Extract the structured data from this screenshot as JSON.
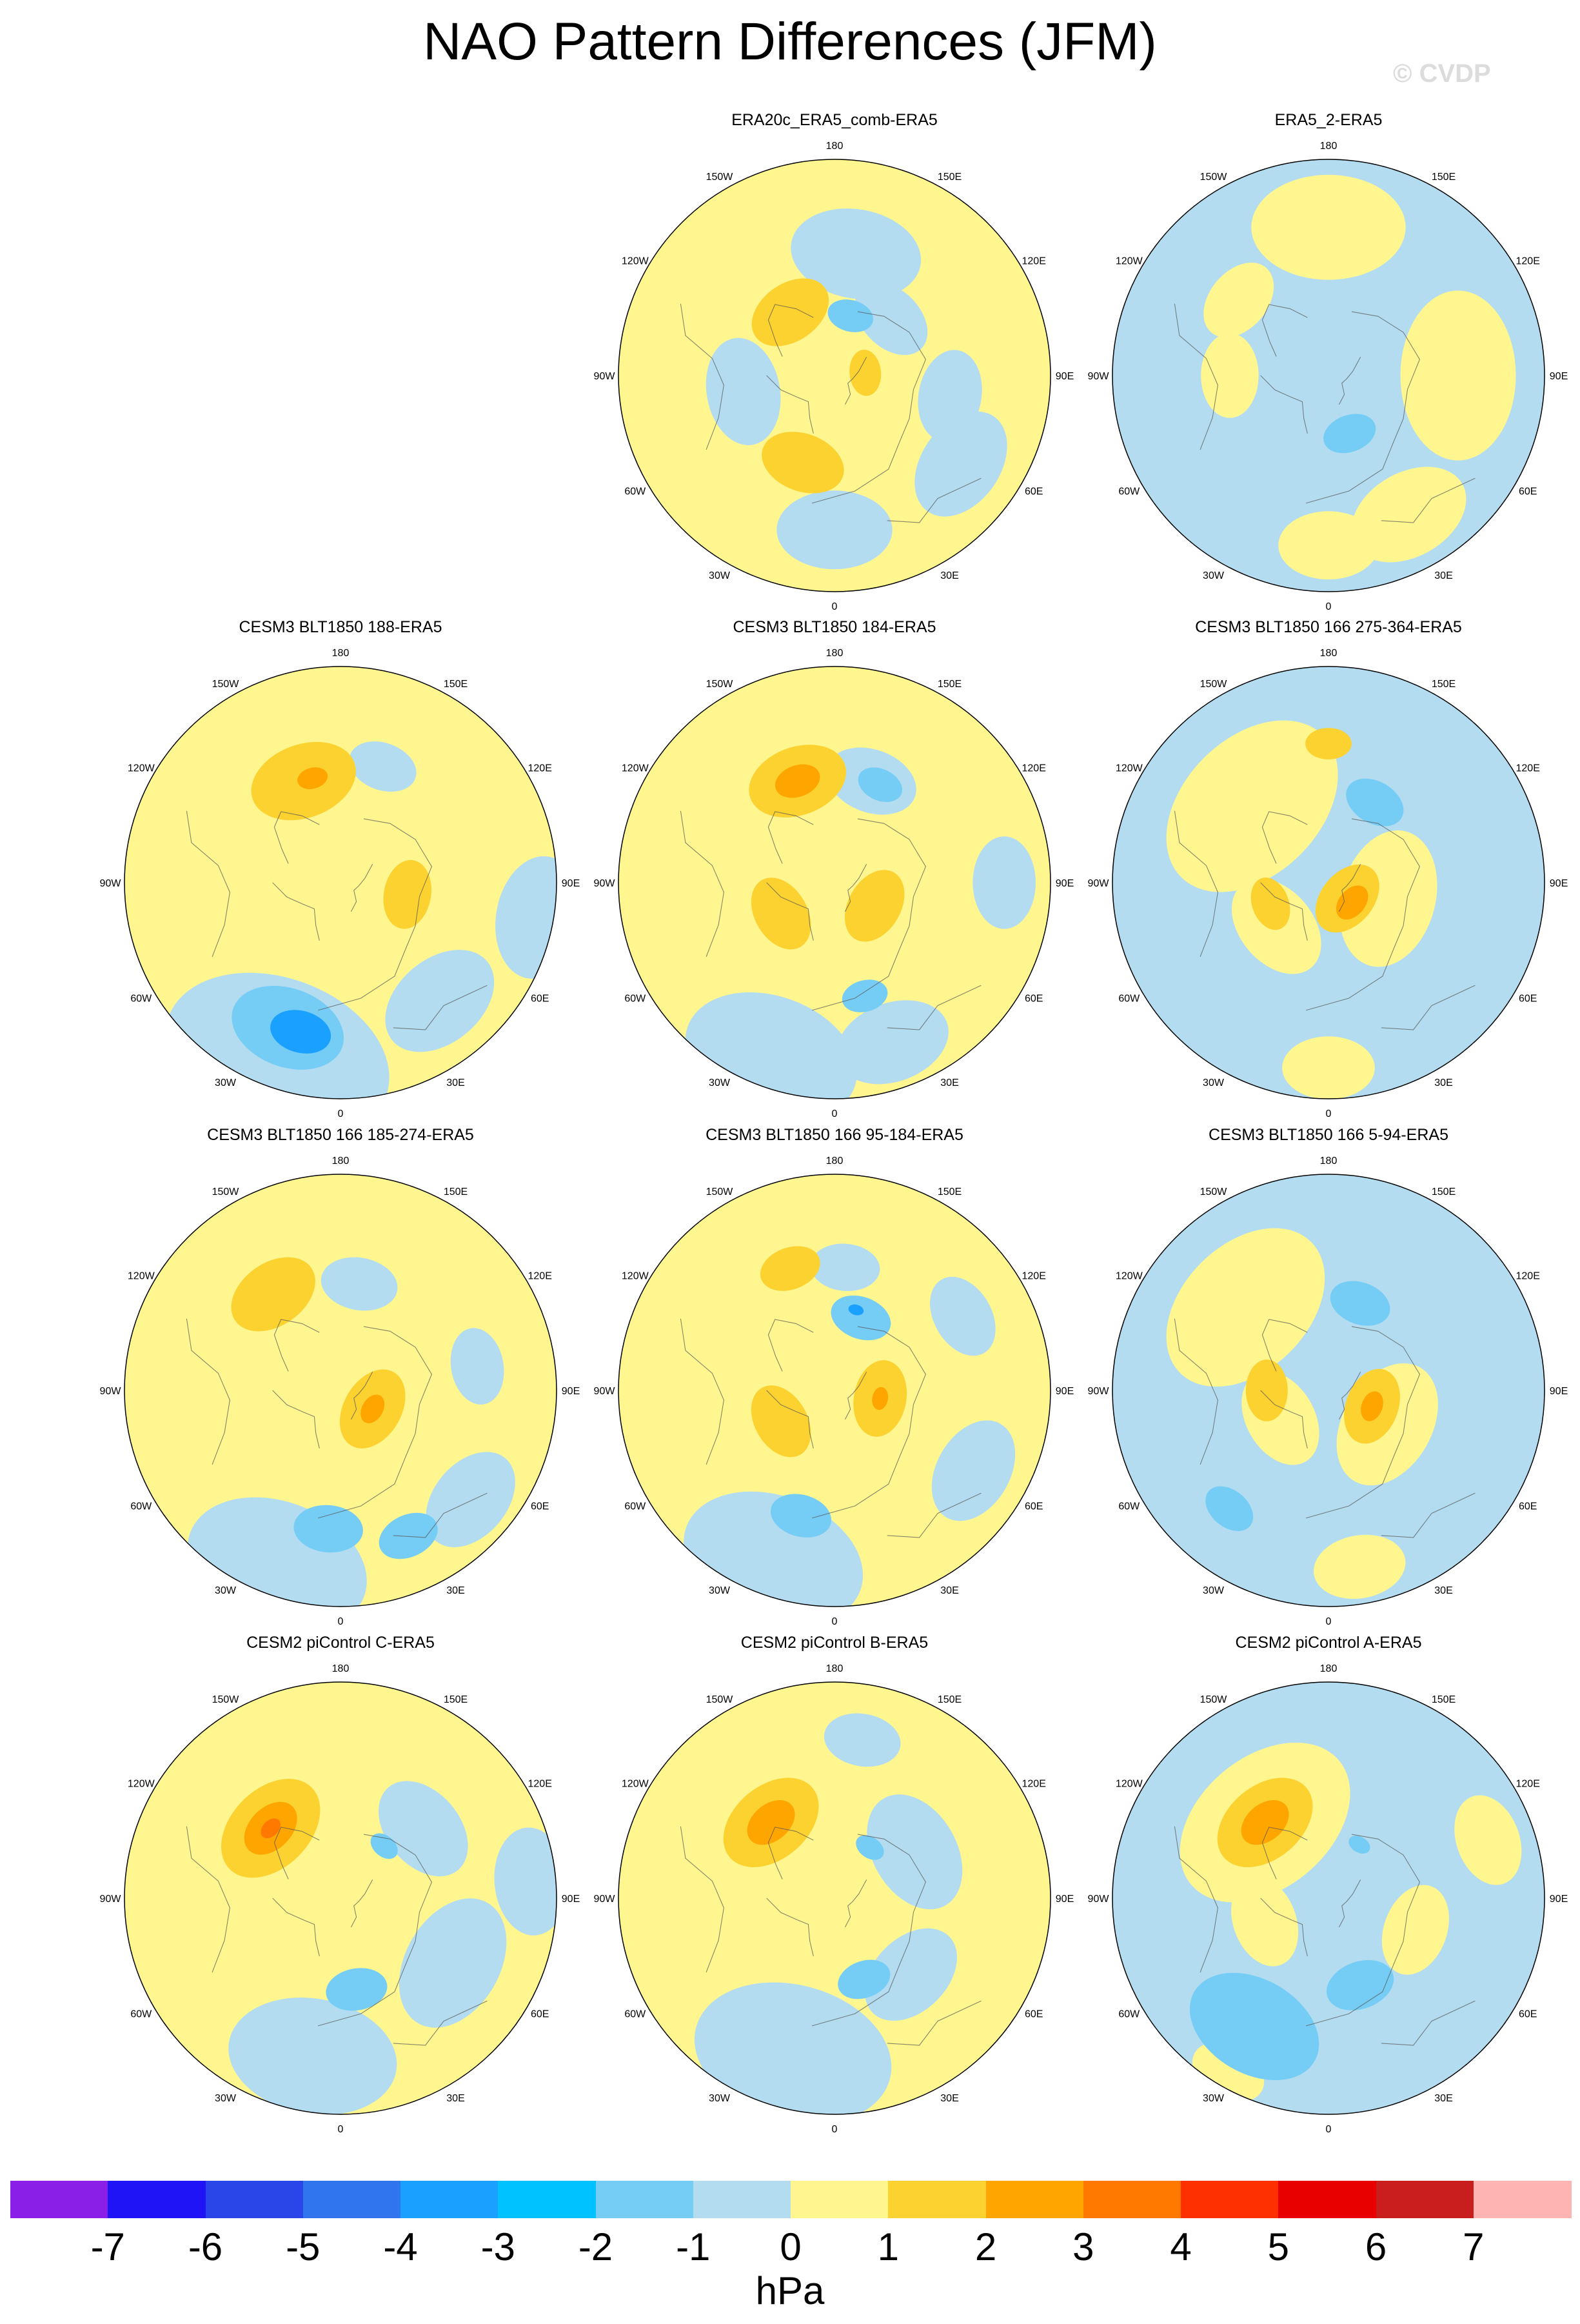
{
  "figure": {
    "title": "NAO Pattern Differences (JFM)",
    "watermark": "© CVDP",
    "units": "hPa"
  },
  "colors": {
    "neg3": "#1aa1ff",
    "neg2": "#75cdf5",
    "neg1": "#b4dcf0",
    "pos1": "#fff68f",
    "pos2": "#fcd230",
    "pos3": "#ffa500",
    "pos4": "#ff7800"
  },
  "colorbar": {
    "levels": [
      "-7",
      "-6",
      "-5",
      "-4",
      "-3",
      "-2",
      "-1",
      "0",
      "1",
      "2",
      "3",
      "4",
      "5",
      "6",
      "7"
    ],
    "colors": [
      "#8a20e8",
      "#1e14f5",
      "#2a46e8",
      "#3075ee",
      "#1aa1ff",
      "#00c2ff",
      "#75cdf5",
      "#b4dcf0",
      "#fff68f",
      "#fcd230",
      "#ffa500",
      "#ff7800",
      "#ff3000",
      "#e80000",
      "#c81e1e",
      "#ffb4b4"
    ]
  },
  "lon_labels": [
    "180",
    "150E",
    "120E",
    "90E",
    "60E",
    "30E",
    "0",
    "30W",
    "60W",
    "90W",
    "120W",
    "150W"
  ],
  "panels": [
    {
      "title": "ERA20c_ERA5_comb-ERA5",
      "bg": "pos1",
      "regions": [
        {
          "lon": 170,
          "colat": 40,
          "r": 17,
          "level": "neg1"
        },
        {
          "lon": 135,
          "colat": 26,
          "r": 11,
          "level": "neg1"
        },
        {
          "lon": 280,
          "colat": 30,
          "r": 14,
          "level": "neg1"
        },
        {
          "lon": 0,
          "colat": 50,
          "r": 15,
          "level": "neg1"
        },
        {
          "lon": 55,
          "colat": 50,
          "r": 15,
          "level": "neg1"
        },
        {
          "lon": 80,
          "colat": 38,
          "r": 12,
          "level": "neg1"
        },
        {
          "lon": 215,
          "colat": 25,
          "r": 11,
          "level": "pos2"
        },
        {
          "lon": 340,
          "colat": 30,
          "r": 11,
          "level": "pos2"
        },
        {
          "lon": 95,
          "colat": 10,
          "r": 6,
          "level": "pos2"
        },
        {
          "lon": 165,
          "colat": 20,
          "r": 6,
          "level": "neg2"
        }
      ]
    },
    {
      "title": "ERA5_2-ERA5",
      "bg": "neg1",
      "regions": [
        {
          "lon": 180,
          "colat": 48,
          "r": 20,
          "level": "pos1"
        },
        {
          "lon": 230,
          "colat": 38,
          "r": 11,
          "level": "pos1"
        },
        {
          "lon": 90,
          "colat": 42,
          "r": 22,
          "level": "pos1"
        },
        {
          "lon": 30,
          "colat": 52,
          "r": 16,
          "level": "pos1"
        },
        {
          "lon": 270,
          "colat": 32,
          "r": 11,
          "level": "pos1"
        },
        {
          "lon": 0,
          "colat": 55,
          "r": 13,
          "level": "pos1"
        },
        {
          "lon": 20,
          "colat": 20,
          "r": 7,
          "level": "neg2"
        }
      ]
    },
    {
      "title": "CESM3 BLT1850 188-ERA5",
      "bg": "pos1",
      "regions": [
        {
          "lon": 340,
          "colat": 60,
          "r": 30,
          "level": "neg1"
        },
        {
          "lon": 40,
          "colat": 50,
          "r": 16,
          "level": "neg1"
        },
        {
          "lon": 80,
          "colat": 65,
          "r": 16,
          "level": "neg1"
        },
        {
          "lon": 160,
          "colat": 40,
          "r": 9,
          "level": "neg1"
        },
        {
          "lon": 200,
          "colat": 35,
          "r": 14,
          "level": "pos2"
        },
        {
          "lon": 80,
          "colat": 22,
          "r": 9,
          "level": "pos2"
        },
        {
          "lon": 340,
          "colat": 50,
          "r": 15,
          "level": "neg2"
        },
        {
          "lon": 345,
          "colat": 50,
          "r": 8,
          "level": "neg3"
        },
        {
          "lon": 195,
          "colat": 35,
          "r": 4,
          "level": "pos3"
        }
      ]
    },
    {
      "title": "CESM3 BLT1850 184-ERA5",
      "bg": "pos1",
      "regions": [
        {
          "lon": 340,
          "colat": 60,
          "r": 23,
          "level": "neg1"
        },
        {
          "lon": 20,
          "colat": 55,
          "r": 15,
          "level": "neg1"
        },
        {
          "lon": 90,
          "colat": 55,
          "r": 12,
          "level": "neg1"
        },
        {
          "lon": 160,
          "colat": 35,
          "r": 12,
          "level": "neg1"
        },
        {
          "lon": 200,
          "colat": 35,
          "r": 13,
          "level": "pos2"
        },
        {
          "lon": 300,
          "colat": 20,
          "r": 10,
          "level": "pos2"
        },
        {
          "lon": 60,
          "colat": 15,
          "r": 10,
          "level": "pos2"
        },
        {
          "lon": 200,
          "colat": 35,
          "r": 6,
          "level": "pos3"
        },
        {
          "lon": 155,
          "colat": 35,
          "r": 6,
          "level": "neg2"
        },
        {
          "lon": 15,
          "colat": 38,
          "r": 6,
          "level": "neg2"
        }
      ]
    },
    {
      "title": "CESM3 BLT1850 166 275-364-ERA5",
      "bg": "neg1",
      "regions": [
        {
          "lon": 225,
          "colat": 35,
          "r": 26,
          "level": "pos1"
        },
        {
          "lon": 75,
          "colat": 20,
          "r": 18,
          "level": "pos1"
        },
        {
          "lon": 310,
          "colat": 22,
          "r": 14,
          "level": "pos1"
        },
        {
          "lon": 0,
          "colat": 60,
          "r": 12,
          "level": "pos1"
        },
        {
          "lon": 180,
          "colat": 45,
          "r": 6,
          "level": "pos2"
        },
        {
          "lon": 50,
          "colat": 8,
          "r": 10,
          "level": "pos2"
        },
        {
          "lon": 290,
          "colat": 20,
          "r": 7,
          "level": "pos2"
        },
        {
          "lon": 50,
          "colat": 10,
          "r": 5,
          "level": "pos3"
        },
        {
          "lon": 150,
          "colat": 30,
          "r": 8,
          "level": "neg2"
        }
      ]
    },
    {
      "title": "CESM3 BLT1850 166 185-274-ERA5",
      "bg": "pos1",
      "regions": [
        {
          "lon": 340,
          "colat": 60,
          "r": 24,
          "level": "neg1"
        },
        {
          "lon": 50,
          "colat": 55,
          "r": 14,
          "level": "neg1"
        },
        {
          "lon": 100,
          "colat": 45,
          "r": 10,
          "level": "neg1"
        },
        {
          "lon": 170,
          "colat": 35,
          "r": 10,
          "level": "neg1"
        },
        {
          "lon": 215,
          "colat": 38,
          "r": 12,
          "level": "pos2"
        },
        {
          "lon": 60,
          "colat": 12,
          "r": 11,
          "level": "pos2"
        },
        {
          "lon": 60,
          "colat": 12,
          "r": 4,
          "level": "pos3"
        },
        {
          "lon": 355,
          "colat": 45,
          "r": 9,
          "level": "neg2"
        },
        {
          "lon": 25,
          "colat": 52,
          "r": 8,
          "level": "neg2"
        }
      ]
    },
    {
      "title": "CESM3 BLT1850 166 95-184-ERA5",
      "bg": "pos1",
      "regions": [
        {
          "lon": 340,
          "colat": 58,
          "r": 24,
          "level": "neg1"
        },
        {
          "lon": 60,
          "colat": 52,
          "r": 14,
          "level": "neg1"
        },
        {
          "lon": 120,
          "colat": 48,
          "r": 11,
          "level": "neg1"
        },
        {
          "lon": 175,
          "colat": 40,
          "r": 9,
          "level": "neg1"
        },
        {
          "lon": 200,
          "colat": 42,
          "r": 8,
          "level": "pos2"
        },
        {
          "lon": 80,
          "colat": 15,
          "r": 10,
          "level": "pos2"
        },
        {
          "lon": 300,
          "colat": 20,
          "r": 10,
          "level": "pos2"
        },
        {
          "lon": 80,
          "colat": 15,
          "r": 3,
          "level": "pos3"
        },
        {
          "lon": 160,
          "colat": 25,
          "r": 8,
          "level": "neg2"
        },
        {
          "lon": 345,
          "colat": 42,
          "r": 8,
          "level": "neg2"
        },
        {
          "lon": 165,
          "colat": 27,
          "r": 2,
          "level": "neg3"
        }
      ]
    },
    {
      "title": "CESM3 BLT1850 166 5-94-ERA5",
      "bg": "neg1",
      "regions": [
        {
          "lon": 225,
          "colat": 38,
          "r": 24,
          "level": "pos1"
        },
        {
          "lon": 60,
          "colat": 22,
          "r": 17,
          "level": "pos1"
        },
        {
          "lon": 300,
          "colat": 18,
          "r": 13,
          "level": "pos1"
        },
        {
          "lon": 10,
          "colat": 58,
          "r": 12,
          "level": "pos1"
        },
        {
          "lon": 200,
          "colat": 40,
          "r": 6,
          "level": "pos1"
        },
        {
          "lon": 70,
          "colat": 15,
          "r": 10,
          "level": "pos2"
        },
        {
          "lon": 270,
          "colat": 20,
          "r": 8,
          "level": "pos2"
        },
        {
          "lon": 70,
          "colat": 15,
          "r": 4,
          "level": "pos3"
        },
        {
          "lon": 160,
          "colat": 30,
          "r": 8,
          "level": "neg2"
        },
        {
          "lon": 320,
          "colat": 50,
          "r": 7,
          "level": "neg2"
        }
      ]
    },
    {
      "title": "CESM2 piControl C-ERA5",
      "bg": "pos1",
      "regions": [
        {
          "lon": 350,
          "colat": 52,
          "r": 22,
          "level": "neg1"
        },
        {
          "lon": 60,
          "colat": 42,
          "r": 18,
          "level": "neg1"
        },
        {
          "lon": 130,
          "colat": 35,
          "r": 14,
          "level": "neg1"
        },
        {
          "lon": 95,
          "colat": 62,
          "r": 14,
          "level": "neg1"
        },
        {
          "lon": 225,
          "colat": 32,
          "r": 15,
          "level": "pos2"
        },
        {
          "lon": 225,
          "colat": 32,
          "r": 8,
          "level": "pos3"
        },
        {
          "lon": 225,
          "colat": 32,
          "r": 3,
          "level": "pos4"
        },
        {
          "lon": 10,
          "colat": 30,
          "r": 8,
          "level": "neg2"
        },
        {
          "lon": 140,
          "colat": 22,
          "r": 4,
          "level": "neg2"
        }
      ]
    },
    {
      "title": "CESM2 piControl B-ERA5",
      "bg": "pos1",
      "regions": [
        {
          "lon": 345,
          "colat": 52,
          "r": 26,
          "level": "neg1"
        },
        {
          "lon": 45,
          "colat": 35,
          "r": 14,
          "level": "neg1"
        },
        {
          "lon": 120,
          "colat": 30,
          "r": 16,
          "level": "neg1"
        },
        {
          "lon": 170,
          "colat": 52,
          "r": 10,
          "level": "neg1"
        },
        {
          "lon": 220,
          "colat": 32,
          "r": 14,
          "level": "pos2"
        },
        {
          "lon": 220,
          "colat": 32,
          "r": 7,
          "level": "pos3"
        },
        {
          "lon": 20,
          "colat": 28,
          "r": 7,
          "level": "neg2"
        },
        {
          "lon": 145,
          "colat": 20,
          "r": 4,
          "level": "neg2"
        }
      ]
    },
    {
      "title": "CESM2 piControl A-ERA5",
      "bg": "neg1",
      "regions": [
        {
          "lon": 220,
          "colat": 32,
          "r": 25,
          "level": "pos1"
        },
        {
          "lon": 70,
          "colat": 30,
          "r": 12,
          "level": "pos1"
        },
        {
          "lon": 290,
          "colat": 22,
          "r": 12,
          "level": "pos1"
        },
        {
          "lon": 110,
          "colat": 55,
          "r": 12,
          "level": "pos1"
        },
        {
          "lon": 330,
          "colat": 65,
          "r": 10,
          "level": "pos1"
        },
        {
          "lon": 220,
          "colat": 32,
          "r": 14,
          "level": "pos2"
        },
        {
          "lon": 220,
          "colat": 32,
          "r": 7,
          "level": "pos3"
        },
        {
          "lon": 330,
          "colat": 48,
          "r": 18,
          "level": "neg2"
        },
        {
          "lon": 20,
          "colat": 30,
          "r": 9,
          "level": "neg2"
        },
        {
          "lon": 150,
          "colat": 20,
          "r": 3,
          "level": "neg2"
        }
      ]
    }
  ]
}
